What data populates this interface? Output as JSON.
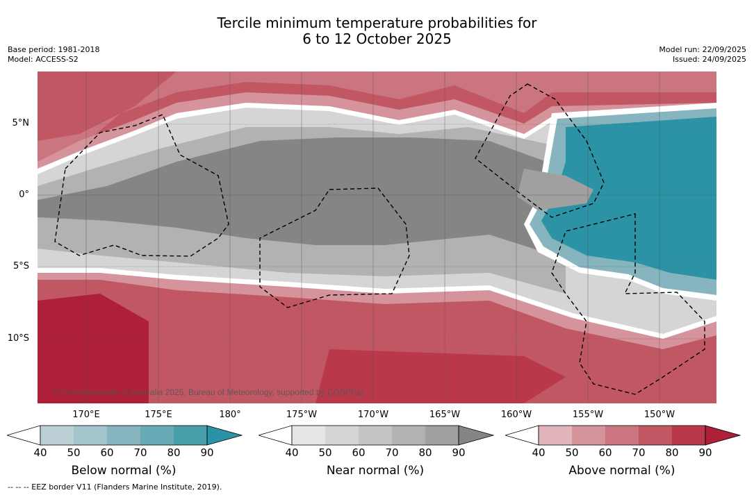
{
  "title": {
    "line1": "Tercile minimum temperature probabilities for",
    "line2": "6 to 12 October 2025"
  },
  "meta_left": {
    "base_period": "Base period: 1981-2018",
    "model": "Model: ACCESS-S2"
  },
  "meta_right": {
    "model_run": "Model run: 22/09/2025",
    "issued": "Issued: 24/09/2025"
  },
  "map": {
    "lat_labels": [
      "5°N",
      "0°",
      "5°S",
      "10°S"
    ],
    "lon_labels": [
      "170°E",
      "175°E",
      "180°",
      "175°W",
      "170°W",
      "165°W",
      "160°W",
      "155°W",
      "150°W"
    ],
    "copyright": "© Commonwealth of Australia 2025, Bureau of Meteorology, supported by COSPPac"
  },
  "colorbars": {
    "below": {
      "label": "Below normal (%)",
      "ticks": [
        "40",
        "50",
        "60",
        "70",
        "80",
        "90"
      ],
      "colors": [
        "#bccfd5",
        "#a4c4cb",
        "#86b5c0",
        "#69aab7",
        "#4a9fad",
        "#2c93a6"
      ]
    },
    "near": {
      "label": "Near normal (%)",
      "ticks": [
        "40",
        "50",
        "60",
        "70",
        "80",
        "90"
      ],
      "colors": [
        "#e6e6e6",
        "#d5d5d5",
        "#c4c4c4",
        "#b2b2b2",
        "#a0a0a0",
        "#858585"
      ]
    },
    "above": {
      "label": "Above normal (%)",
      "ticks": [
        "40",
        "50",
        "60",
        "70",
        "80",
        "90"
      ],
      "colors": [
        "#e0b4ba",
        "#d5949c",
        "#cb7580",
        "#c25764",
        "#b9384a",
        "#ae1f38"
      ]
    }
  },
  "footer": {
    "eez_legend": "--  --  -- EEZ border V11 (Flanders Marine Institute, 2019)."
  }
}
